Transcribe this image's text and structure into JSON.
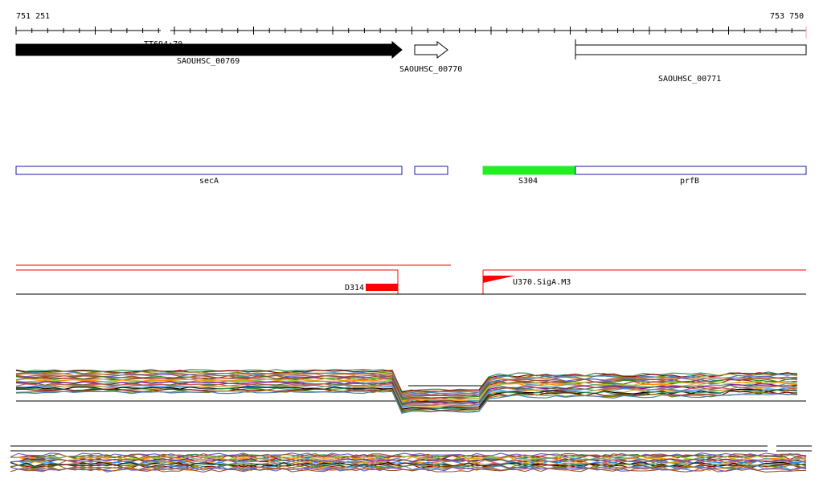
{
  "ruler": {
    "start_label": "751 251",
    "end_label": "753 750",
    "overlap_label": "TT694:70"
  },
  "genes": [
    {
      "label": "SAOUHSC_00769",
      "fill": "#000000",
      "strand": "+"
    },
    {
      "label": "SAOUHSC_00770",
      "fill": "#ffffff",
      "strand": "+"
    },
    {
      "label": "SAOUHSC_00771",
      "fill": "#ffffff",
      "strand": "+"
    }
  ],
  "features": [
    {
      "label": "secA",
      "fill": "#ffffff",
      "stroke": "#1a1aa0"
    },
    {
      "label": "",
      "fill": "#ffffff",
      "stroke": "#1a1aa0"
    },
    {
      "label": "S304",
      "fill": "#22ee22",
      "stroke": "#22ee22"
    },
    {
      "label": "prfB",
      "fill": "#ffffff",
      "stroke": "#1a1aa0"
    }
  ],
  "segments": [
    {
      "label": "D314",
      "color": "#ff0000"
    },
    {
      "label": "U370.SigA.M3",
      "color": "#ff0000"
    }
  ],
  "colors": {
    "ruler": "#000000",
    "segment_line": "#ff0000",
    "baseline": "#000000",
    "profile_palette": [
      "#2e8b57",
      "#8b0000",
      "#808000",
      "#4682b4",
      "#d2691e",
      "#6a5acd",
      "#a0522d",
      "#228b22",
      "#b22222",
      "#9acd32",
      "#ff8c00",
      "#5f9ea0",
      "#800080",
      "#556b2f",
      "#cd5c5c",
      "#1e90ff",
      "#daa520",
      "#000000"
    ]
  }
}
